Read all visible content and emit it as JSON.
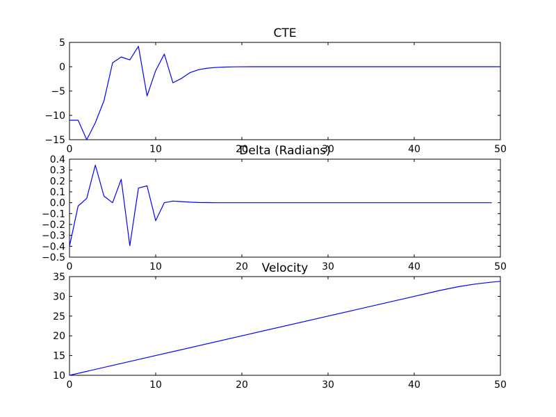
{
  "figure": {
    "background": "#ffffff",
    "line_color": "#0000ff"
  },
  "chart_data": [
    {
      "type": "line",
      "title": "CTE",
      "xlabel": "",
      "ylabel": "",
      "xlim": [
        0,
        50
      ],
      "ylim": [
        -15,
        5
      ],
      "grid": false,
      "x_ticks": [
        0,
        10,
        20,
        30,
        40,
        50
      ],
      "y_ticks": [
        -15,
        -10,
        -5,
        0,
        5
      ],
      "x_tick_labels": [
        "0",
        "10",
        "20",
        "30",
        "40",
        "50"
      ],
      "y_tick_labels": [
        "−15",
        "−10",
        "−5",
        "0",
        "5"
      ],
      "series": [
        {
          "x": [
            0,
            1,
            2,
            3,
            4,
            5,
            6,
            7,
            8,
            9,
            10,
            11,
            12,
            13,
            14,
            15,
            16,
            17,
            18,
            19,
            20,
            21,
            22,
            50
          ],
          "y": [
            -11,
            -11,
            -15,
            -11.5,
            -7,
            0.8,
            2,
            1.4,
            4.2,
            -6,
            -0.8,
            2.6,
            -3.3,
            -2.4,
            -1.2,
            -0.6,
            -0.3,
            -0.15,
            -0.07,
            -0.03,
            -0.01,
            0,
            0,
            0
          ]
        }
      ]
    },
    {
      "type": "line",
      "title": "Delta (Radians)",
      "xlabel": "",
      "ylabel": "",
      "xlim": [
        0,
        50
      ],
      "ylim": [
        -0.5,
        0.4
      ],
      "grid": false,
      "x_ticks": [
        0,
        10,
        20,
        30,
        40,
        50
      ],
      "y_ticks": [
        -0.5,
        -0.4,
        -0.3,
        -0.2,
        -0.1,
        0.0,
        0.1,
        0.2,
        0.3,
        0.4
      ],
      "x_tick_labels": [
        "0",
        "10",
        "20",
        "30",
        "40",
        "50"
      ],
      "y_tick_labels": [
        "−0.5",
        "−0.4",
        "−0.3",
        "−0.2",
        "−0.1",
        "0.0",
        "0.1",
        "0.2",
        "0.3",
        "0.4"
      ],
      "series": [
        {
          "x": [
            0,
            1,
            2,
            3,
            4,
            5,
            6,
            7,
            8,
            9,
            10,
            11,
            12,
            13,
            14,
            15,
            16,
            17,
            18,
            20,
            49
          ],
          "y": [
            -0.4,
            -0.03,
            0.04,
            0.345,
            0.06,
            0,
            0.215,
            -0.395,
            0.135,
            0.155,
            -0.165,
            0,
            0.015,
            0.01,
            0.005,
            0.002,
            0.001,
            0,
            0,
            0,
            0
          ]
        }
      ]
    },
    {
      "type": "line",
      "title": "Velocity",
      "xlabel": "",
      "ylabel": "",
      "xlim": [
        0,
        50
      ],
      "ylim": [
        10,
        35
      ],
      "grid": false,
      "x_ticks": [
        0,
        10,
        20,
        30,
        40,
        50
      ],
      "y_ticks": [
        10,
        15,
        20,
        25,
        30,
        35
      ],
      "x_tick_labels": [
        "0",
        "10",
        "20",
        "30",
        "40",
        "50"
      ],
      "y_tick_labels": [
        "10",
        "15",
        "20",
        "25",
        "30",
        "35"
      ],
      "series": [
        {
          "x": [
            0,
            10,
            20,
            30,
            40,
            43,
            45,
            47,
            49,
            50
          ],
          "y": [
            10,
            15,
            20,
            25,
            30,
            31.5,
            32.4,
            33.1,
            33.6,
            33.8
          ]
        }
      ]
    }
  ]
}
